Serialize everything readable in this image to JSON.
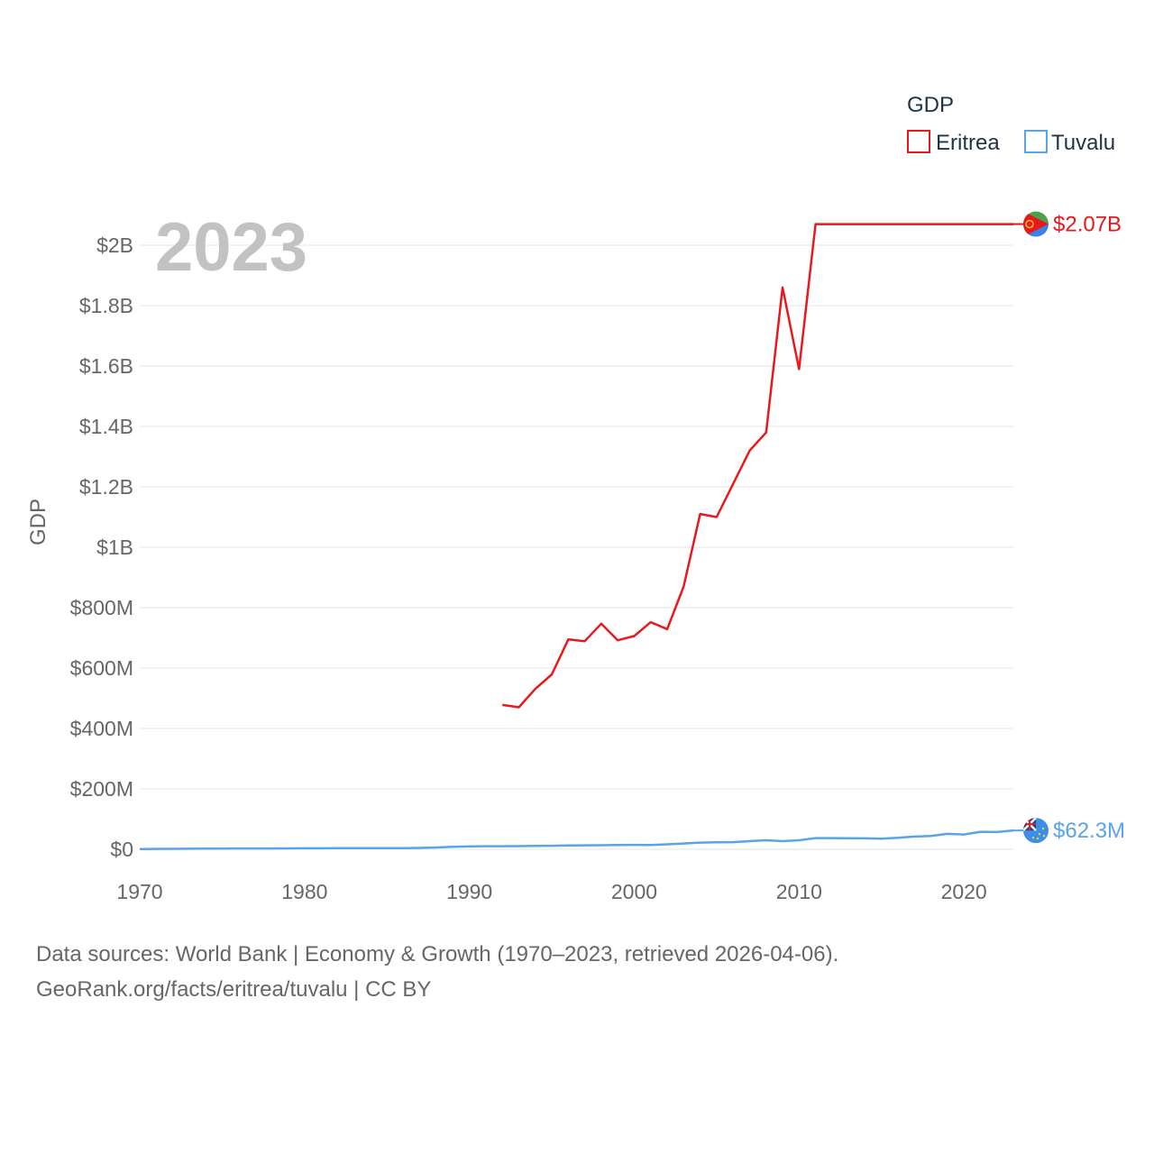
{
  "chart_data": {
    "type": "line",
    "year_label": "2023",
    "ylabel": "GDP",
    "legend_title": "GDP",
    "legend_placement": "top-right",
    "x_ticks": [
      1970,
      1980,
      1990,
      2000,
      2010,
      2020
    ],
    "xlim": [
      1970,
      2023
    ],
    "y_ticks": [
      {
        "value": 0,
        "label": "$0"
      },
      {
        "value": 200000000,
        "label": "$200M"
      },
      {
        "value": 400000000,
        "label": "$400M"
      },
      {
        "value": 600000000,
        "label": "$600M"
      },
      {
        "value": 800000000,
        "label": "$800M"
      },
      {
        "value": 1000000000,
        "label": "$1B"
      },
      {
        "value": 1200000000,
        "label": "$1.2B"
      },
      {
        "value": 1400000000,
        "label": "$1.4B"
      },
      {
        "value": 1600000000,
        "label": "$1.6B"
      },
      {
        "value": 1800000000,
        "label": "$1.8B"
      },
      {
        "value": 2000000000,
        "label": "$2B"
      }
    ],
    "ylim": [
      0,
      2000000000
    ],
    "series": [
      {
        "name": "Eritrea",
        "color": "#e8191c",
        "end_label": "$2.07B",
        "x": [
          1992,
          1993,
          1994,
          1995,
          1996,
          1997,
          1998,
          1999,
          2000,
          2001,
          2002,
          2003,
          2004,
          2005,
          2006,
          2007,
          2008,
          2009,
          2010,
          2011,
          2012,
          2013,
          2014,
          2015,
          2016,
          2017,
          2018,
          2019,
          2020,
          2021,
          2022,
          2023
        ],
        "values": [
          478000000,
          470000000,
          531000000,
          579000000,
          695000000,
          689000000,
          747000000,
          692000000,
          706000000,
          752000000,
          729000000,
          870000000,
          1110000000,
          1100000000,
          1210000000,
          1320000000,
          1380000000,
          1860000000,
          1590000000,
          2070000000,
          2070000000,
          2070000000,
          2070000000,
          2070000000,
          2070000000,
          2070000000,
          2070000000,
          2070000000,
          2070000000,
          2070000000,
          2070000000,
          2070000000
        ]
      },
      {
        "name": "Tuvalu",
        "color": "#5ba3e8",
        "end_label": "$62.3M",
        "x": [
          1970,
          1971,
          1972,
          1973,
          1974,
          1975,
          1976,
          1977,
          1978,
          1979,
          1980,
          1981,
          1982,
          1983,
          1984,
          1985,
          1986,
          1987,
          1988,
          1989,
          1990,
          1991,
          1992,
          1993,
          1994,
          1995,
          1996,
          1997,
          1998,
          1999,
          2000,
          2001,
          2002,
          2003,
          2004,
          2005,
          2006,
          2007,
          2008,
          2009,
          2010,
          2011,
          2012,
          2013,
          2014,
          2015,
          2016,
          2017,
          2018,
          2019,
          2020,
          2021,
          2022,
          2023
        ],
        "values": [
          1000000,
          1200000,
          1400000,
          1800000,
          2300000,
          2500000,
          2600000,
          2700000,
          2800000,
          3000000,
          3200000,
          3400000,
          3500000,
          3500000,
          3600000,
          3600000,
          3800000,
          4500000,
          6000000,
          8000000,
          9300000,
          10000000,
          10200000,
          10300000,
          11000000,
          11500000,
          12500000,
          13000000,
          13500000,
          14000000,
          14500000,
          14200000,
          16500000,
          19000000,
          22000000,
          23000000,
          23500000,
          27000000,
          30000000,
          27000000,
          30000000,
          37000000,
          37000000,
          36500000,
          36000000,
          35000000,
          38000000,
          42000000,
          44000000,
          51000000,
          49000000,
          58000000,
          57000000,
          62300000
        ]
      }
    ]
  },
  "footer": {
    "line1": "Data sources: World Bank | Economy & Growth (1970–2023, retrieved 2026-04-06).",
    "line2": "GeoRank.org/facts/eritrea/tuvalu | CC BY"
  }
}
